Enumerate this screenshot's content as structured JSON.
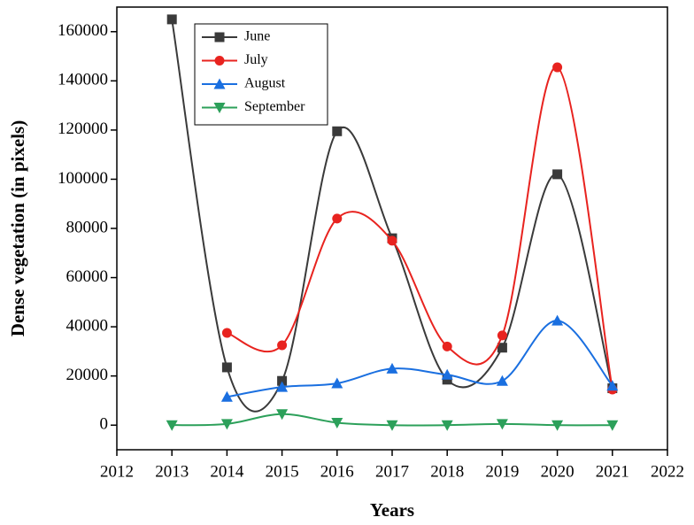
{
  "chart_data": {
    "type": "line",
    "x_label": "Years",
    "y_label": "Dense vegetation (in pixels)",
    "x": [
      2013,
      2014,
      2015,
      2016,
      2017,
      2018,
      2019,
      2020,
      2021
    ],
    "series": [
      {
        "name": "June",
        "color": "#3a3a3a",
        "marker": "square",
        "values": [
          165000,
          23500,
          18000,
          119500,
          76000,
          18500,
          31500,
          102000,
          15000
        ]
      },
      {
        "name": "July",
        "color": "#e8231f",
        "marker": "circle",
        "values": [
          null,
          37500,
          32500,
          84000,
          75000,
          32000,
          36500,
          145500,
          14500
        ]
      },
      {
        "name": "August",
        "color": "#1a6fe0",
        "marker": "triangle-up",
        "values": [
          null,
          11500,
          15500,
          17000,
          23000,
          20500,
          18000,
          42500,
          16000
        ]
      },
      {
        "name": "September",
        "color": "#2ca05a",
        "marker": "triangle-down",
        "values": [
          0,
          500,
          4500,
          1000,
          0,
          0,
          500,
          0,
          0
        ]
      }
    ],
    "xlim": [
      2012,
      2022
    ],
    "xticks": [
      2012,
      2013,
      2014,
      2015,
      2016,
      2017,
      2018,
      2019,
      2020,
      2021,
      2022
    ],
    "ylim": [
      -10000,
      170000
    ],
    "yticks": [
      0,
      20000,
      40000,
      60000,
      80000,
      100000,
      120000,
      140000,
      160000
    ],
    "smooth": true,
    "legend": "upper-left"
  }
}
